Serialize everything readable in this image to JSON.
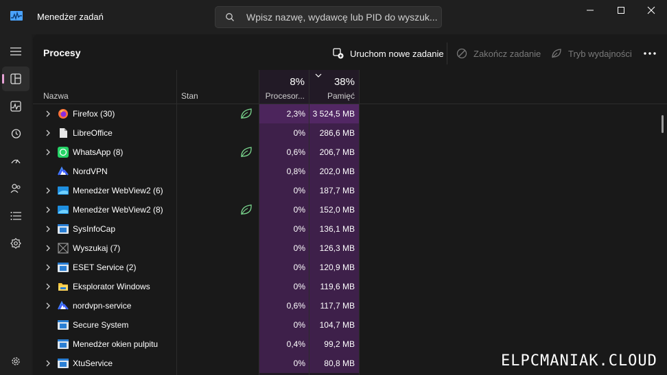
{
  "window": {
    "title": "Menedżer zadań",
    "search_placeholder": "Wpisz nazwę, wydawcę lub PID do wyszuk..."
  },
  "sidebar": {
    "items": [
      {
        "icon": "hamburger-icon"
      },
      {
        "icon": "processes-icon",
        "active": true
      },
      {
        "icon": "performance-icon"
      },
      {
        "icon": "app-history-icon"
      },
      {
        "icon": "startup-icon"
      },
      {
        "icon": "users-icon"
      },
      {
        "icon": "details-icon"
      },
      {
        "icon": "services-icon"
      },
      {
        "icon": "settings-icon"
      }
    ]
  },
  "toolbar": {
    "page_title": "Procesy",
    "run_new_task": "Uruchom nowe zadanie",
    "end_task": "Zakończ zadanie",
    "efficiency_mode": "Tryb wydajności"
  },
  "table": {
    "columns": {
      "name": "Nazwa",
      "status": "Stan",
      "cpu": "Procesor...",
      "cpu_total": "8%",
      "memory": "Pamięć",
      "memory_total": "38%"
    },
    "rows": [
      {
        "name": "Firefox (30)",
        "icon": "firefox-icon",
        "expandable": true,
        "eco": true,
        "cpu": "2,3%",
        "mem": "3 524,5 MB",
        "cpu_heat": 0.55,
        "mem_heat": 0.75
      },
      {
        "name": "LibreOffice",
        "icon": "libreoffice-icon",
        "expandable": true,
        "eco": false,
        "cpu": "0%",
        "mem": "286,6 MB",
        "cpu_heat": 0.12,
        "mem_heat": 0.12
      },
      {
        "name": "WhatsApp (8)",
        "icon": "whatsapp-icon",
        "expandable": true,
        "eco": true,
        "cpu": "0,6%",
        "mem": "206,7 MB",
        "cpu_heat": 0.12,
        "mem_heat": 0.12
      },
      {
        "name": "NordVPN",
        "icon": "nordvpn-icon",
        "expandable": false,
        "eco": false,
        "cpu": "0,8%",
        "mem": "202,0 MB",
        "cpu_heat": 0.12,
        "mem_heat": 0.12
      },
      {
        "name": "Menedżer WebView2 (6)",
        "icon": "webview-icon",
        "expandable": true,
        "eco": false,
        "cpu": "0%",
        "mem": "187,7 MB",
        "cpu_heat": 0.12,
        "mem_heat": 0.12
      },
      {
        "name": "Menedżer WebView2 (8)",
        "icon": "webview-icon",
        "expandable": true,
        "eco": true,
        "cpu": "0%",
        "mem": "152,0 MB",
        "cpu_heat": 0.12,
        "mem_heat": 0.12
      },
      {
        "name": "SysInfoCap",
        "icon": "service-window-icon",
        "expandable": true,
        "eco": false,
        "cpu": "0%",
        "mem": "136,1 MB",
        "cpu_heat": 0.12,
        "mem_heat": 0.12
      },
      {
        "name": "Wyszukaj (7)",
        "icon": "search-app-icon",
        "expandable": true,
        "eco": false,
        "cpu": "0%",
        "mem": "126,3 MB",
        "cpu_heat": 0.12,
        "mem_heat": 0.12
      },
      {
        "name": "ESET Service (2)",
        "icon": "service-window-icon",
        "expandable": true,
        "eco": false,
        "cpu": "0%",
        "mem": "120,9 MB",
        "cpu_heat": 0.12,
        "mem_heat": 0.12
      },
      {
        "name": "Eksplorator Windows",
        "icon": "folder-icon",
        "expandable": true,
        "eco": false,
        "cpu": "0%",
        "mem": "119,6 MB",
        "cpu_heat": 0.12,
        "mem_heat": 0.12
      },
      {
        "name": "nordvpn-service",
        "icon": "nordvpn-icon",
        "expandable": true,
        "eco": false,
        "cpu": "0,6%",
        "mem": "117,7 MB",
        "cpu_heat": 0.12,
        "mem_heat": 0.12
      },
      {
        "name": "Secure System",
        "icon": "service-window-icon",
        "expandable": false,
        "eco": false,
        "cpu": "0%",
        "mem": "104,7 MB",
        "cpu_heat": 0.12,
        "mem_heat": 0.12
      },
      {
        "name": "Menedżer okien pulpitu",
        "icon": "service-window-icon",
        "expandable": false,
        "eco": false,
        "cpu": "0,4%",
        "mem": "99,2 MB",
        "cpu_heat": 0.12,
        "mem_heat": 0.12
      },
      {
        "name": "XtuService",
        "icon": "service-window-icon",
        "expandable": true,
        "eco": false,
        "cpu": "0%",
        "mem": "80,8 MB",
        "cpu_heat": 0.12,
        "mem_heat": 0.12
      }
    ]
  },
  "watermark": "ELPCMANIAK.CLOUD",
  "colors": {
    "heat_low": "#3a1f45",
    "heat_high": "#5a2a6e",
    "eco_leaf": "#7bd88f",
    "accent": "#e7a3d6"
  }
}
